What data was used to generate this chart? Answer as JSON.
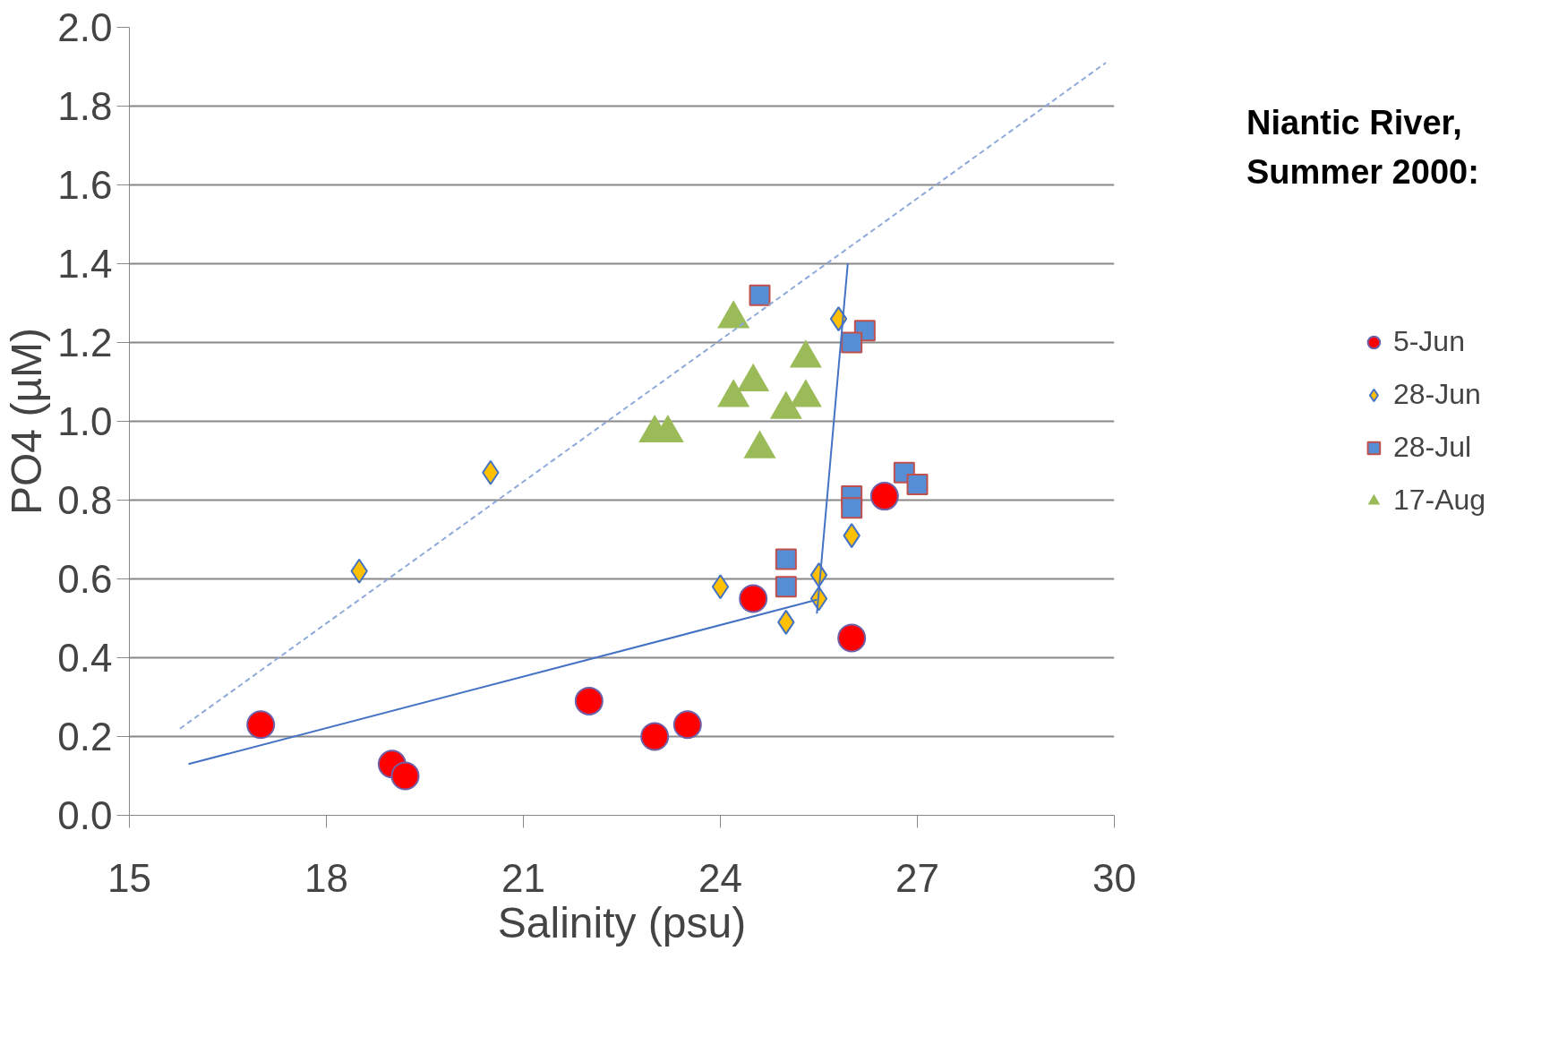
{
  "chart_data": {
    "type": "scatter",
    "xlabel": "Salinity (psu)",
    "ylabel": "PO4 (µM)",
    "annotations": [
      "Niantic River,\nSummer 2000:"
    ],
    "xlim": [
      15,
      30
    ],
    "xticks": [
      15,
      18,
      21,
      24,
      27,
      30
    ],
    "ylim": [
      0,
      2.0
    ],
    "yticks": [
      {
        "value": 0,
        "label": "0.0"
      },
      0.2,
      0.4,
      0.6,
      0.8,
      {
        "value": 1.0,
        "label": "1.0"
      },
      1.2,
      1.4,
      1.6,
      1.8,
      {
        "value": 2.0,
        "label": "2.0"
      }
    ],
    "grid": "y",
    "legend": "right",
    "series": [
      {
        "name": "5-Jun",
        "color": "#ff0000",
        "marker": "circle",
        "x": [
          17,
          19.0,
          19.2,
          22,
          23.0,
          23.5,
          24.5,
          26.0,
          26.5
        ],
        "values": [
          0.23,
          0.13,
          0.1,
          0.29,
          0.2,
          0.23,
          0.55,
          0.45,
          0.81
        ]
      },
      {
        "name": "28-Jun",
        "color": "#ffc000",
        "marker": "diamond",
        "x": [
          18.5,
          20.5,
          24.0,
          25.0,
          25.5,
          25.5,
          26.0,
          25.8
        ],
        "values": [
          0.62,
          0.87,
          0.58,
          0.49,
          0.61,
          0.55,
          0.71,
          1.26
        ]
      },
      {
        "name": "28-Jul",
        "color": "#558ed5",
        "marker": "square",
        "x": [
          24.6,
          26.2,
          26.0,
          25.0,
          25.0,
          26.0,
          26.0,
          26.8,
          27.0
        ],
        "values": [
          1.32,
          1.23,
          1.2,
          0.65,
          0.58,
          0.81,
          0.78,
          0.87,
          0.84
        ]
      },
      {
        "name": "17-Aug",
        "color": "#9bbb59",
        "marker": "triangle",
        "x": [
          24.2,
          25.3,
          24.5,
          24.2,
          25.3,
          25.0,
          24.6,
          23.0,
          23.2
        ],
        "values": [
          1.26,
          1.16,
          1.1,
          1.06,
          1.06,
          1.03,
          0.93,
          0.97,
          0.97
        ]
      },
      {
        "type": "line",
        "color": "#4472c4",
        "line_style": "solid",
        "marker": "none",
        "x": [
          15.9,
          25.47
        ],
        "values": [
          0.13,
          0.547
        ]
      },
      {
        "type": "line",
        "color": "#4472c4",
        "line_style": "solid",
        "marker": "none",
        "x": [
          25.47,
          25.94
        ],
        "values": [
          0.512,
          1.4
        ]
      },
      {
        "type": "line",
        "color": "#8eaadb",
        "line_style": "dashed",
        "marker": "none",
        "x": [
          15.77,
          29.87
        ],
        "values": [
          0.22,
          1.91
        ]
      }
    ]
  }
}
